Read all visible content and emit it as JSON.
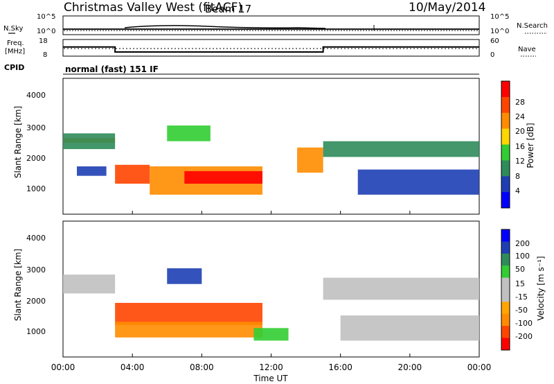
{
  "header": {
    "station": "Christmas Valley West (fitACF)",
    "beam": "Beam 17",
    "date": "10/May/2014"
  },
  "sky_panel": {
    "left_label": "N.Sky",
    "right_label": "N.Search",
    "left_ticks": [
      "10^5",
      "10^0"
    ],
    "right_ticks": [
      "10^5",
      "10^0"
    ]
  },
  "freq_panel": {
    "left_label_1": "Freq.",
    "left_label_2": "[MHz]",
    "right_label": "Nave",
    "left_ticks": [
      "18",
      "8"
    ],
    "right_ticks": [
      "60",
      "0"
    ],
    "freq_mhz": [
      {
        "start": "00:00",
        "end": "03:00",
        "value": 13.5
      },
      {
        "start": "03:00",
        "end": "15:00",
        "value": 10.5
      },
      {
        "start": "15:00",
        "end": "24:00",
        "value": 13.5
      }
    ]
  },
  "cpid": {
    "label": "CPID",
    "text": "normal (fast) 151 IF"
  },
  "time_axis": {
    "label": "Time UT",
    "ticks": [
      "00:00",
      "04:00",
      "08:00",
      "12:00",
      "16:00",
      "20:00",
      "00:00"
    ]
  },
  "chart_data": [
    {
      "type": "heatmap",
      "name": "power-panel",
      "ylabel": "Slant Range [km]",
      "ylim": [
        180,
        4500
      ],
      "yticks": [
        "4000",
        "3000",
        "2000",
        "1000"
      ],
      "colorbar_label": "Power [dB]",
      "colorbar_ticks": [
        "28",
        "24",
        "20",
        "16",
        "12",
        "8",
        "4"
      ],
      "colors": [
        "#0000ff",
        "#1e3fb4",
        "#2f8c5a",
        "#32cd32",
        "#ffd700",
        "#ff8c00",
        "#ff4500",
        "#ff0000"
      ],
      "regions": [
        {
          "start_h": 0.0,
          "end_h": 3.0,
          "range_km": [
            2450,
            2600
          ],
          "level": 5
        },
        {
          "start_h": 0.0,
          "end_h": 3.0,
          "range_km": [
            2250,
            2750
          ],
          "level": 2
        },
        {
          "start_h": 0.8,
          "end_h": 2.5,
          "range_km": [
            1400,
            1700
          ],
          "level": 1
        },
        {
          "start_h": 3.0,
          "end_h": 5.0,
          "range_km": [
            1150,
            1750
          ],
          "level": 6
        },
        {
          "start_h": 5.0,
          "end_h": 11.5,
          "range_km": [
            800,
            1700
          ],
          "level": 5
        },
        {
          "start_h": 7.0,
          "end_h": 11.5,
          "range_km": [
            1150,
            1550
          ],
          "level": 7
        },
        {
          "start_h": 6.0,
          "end_h": 8.5,
          "range_km": [
            2500,
            3000
          ],
          "level": 3
        },
        {
          "start_h": 13.5,
          "end_h": 15.0,
          "range_km": [
            1500,
            2300
          ],
          "level": 5
        },
        {
          "start_h": 15.0,
          "end_h": 24.0,
          "range_km": [
            2000,
            2500
          ],
          "level": 2
        },
        {
          "start_h": 17.0,
          "end_h": 24.0,
          "range_km": [
            800,
            1600
          ],
          "level": 1
        }
      ]
    },
    {
      "type": "heatmap",
      "name": "velocity-panel",
      "ylabel": "Slant Range [km]",
      "ylim": [
        180,
        4500
      ],
      "yticks": [
        "4000",
        "3000",
        "2000",
        "1000"
      ],
      "colorbar_label": "Velocity [m s⁻¹]",
      "colorbar_ticks": [
        "200",
        "100",
        "50",
        "15",
        "-15",
        "-50",
        "-100",
        "-200"
      ],
      "colors": [
        "#ff0000",
        "#ff4500",
        "#ff8c00",
        "#ffa500",
        "#c0c0c0",
        "#c0c0c0",
        "#32cd32",
        "#2f8c5a",
        "#1e3fb4",
        "#0000ff"
      ],
      "regions": [
        {
          "start_h": 0.0,
          "end_h": 3.0,
          "range_km": [
            2200,
            2800
          ],
          "level": 4
        },
        {
          "start_h": 3.0,
          "end_h": 11.5,
          "range_km": [
            1200,
            1900
          ],
          "level": 1
        },
        {
          "start_h": 3.0,
          "end_h": 11.5,
          "range_km": [
            800,
            1300
          ],
          "level": 2
        },
        {
          "start_h": 6.0,
          "end_h": 8.0,
          "range_km": [
            2500,
            3000
          ],
          "level": 8
        },
        {
          "start_h": 11.0,
          "end_h": 13.0,
          "range_km": [
            700,
            1100
          ],
          "level": 6
        },
        {
          "start_h": 15.0,
          "end_h": 24.0,
          "range_km": [
            2000,
            2700
          ],
          "level": 4
        },
        {
          "start_h": 16.0,
          "end_h": 24.0,
          "range_km": [
            700,
            1500
          ],
          "level": 4
        }
      ]
    }
  ]
}
